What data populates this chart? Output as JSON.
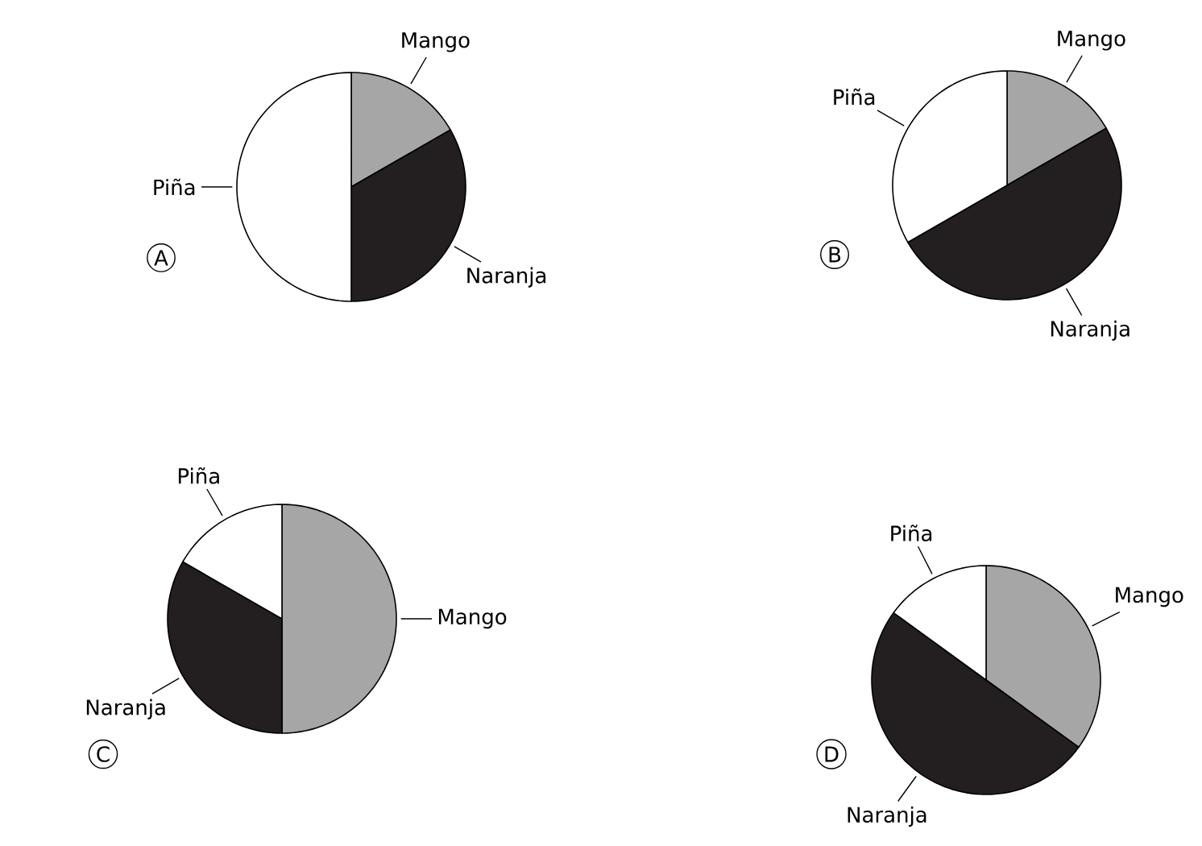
{
  "chart_data": [
    {
      "type": "pie",
      "title": "A",
      "categories": [
        "Mango",
        "Naranja",
        "Piña"
      ],
      "values": [
        16.7,
        33.3,
        50
      ],
      "colors": [
        "#a6a6a6",
        "#231f20",
        "#ffffff"
      ]
    },
    {
      "type": "pie",
      "title": "B",
      "categories": [
        "Mango",
        "Naranja",
        "Piña"
      ],
      "values": [
        16.7,
        50,
        33.3
      ],
      "colors": [
        "#a6a6a6",
        "#231f20",
        "#ffffff"
      ]
    },
    {
      "type": "pie",
      "title": "C",
      "categories": [
        "Mango",
        "Naranja",
        "Piña"
      ],
      "values": [
        50,
        33.3,
        16.7
      ],
      "colors": [
        "#a6a6a6",
        "#231f20",
        "#ffffff"
      ]
    },
    {
      "type": "pie",
      "title": "D",
      "categories": [
        "Mango",
        "Naranja",
        "Piña"
      ],
      "values": [
        35,
        50,
        15
      ],
      "colors": [
        "#a6a6a6",
        "#231f20",
        "#ffffff"
      ]
    }
  ]
}
